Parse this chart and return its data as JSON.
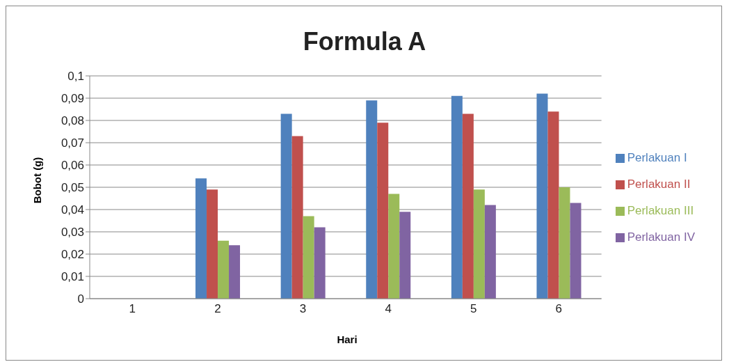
{
  "chart_data": {
    "type": "bar",
    "title": "Formula A",
    "xlabel": "Hari",
    "ylabel": "Bobot (g)",
    "categories": [
      "1",
      "2",
      "3",
      "4",
      "5",
      "6"
    ],
    "series": [
      {
        "name": "Perlakuan I",
        "color": "#4f81bd",
        "values": [
          0,
          0.054,
          0.083,
          0.089,
          0.091,
          0.092
        ]
      },
      {
        "name": "Perlakuan II",
        "color": "#c0504d",
        "values": [
          0,
          0.049,
          0.073,
          0.079,
          0.083,
          0.084
        ]
      },
      {
        "name": "Perlakuan III",
        "color": "#9bbb59",
        "values": [
          0,
          0.026,
          0.037,
          0.047,
          0.049,
          0.05
        ]
      },
      {
        "name": "Perlakuan IV",
        "color": "#8064a2",
        "values": [
          0,
          0.024,
          0.032,
          0.039,
          0.042,
          0.043
        ]
      }
    ],
    "ylim": [
      0,
      0.1
    ],
    "yticks": [
      0,
      {
        "value": 0.01,
        "label": "0,01"
      },
      {
        "value": 0.02,
        "label": "0,02"
      },
      {
        "value": 0.03,
        "label": "0,03"
      },
      {
        "value": 0.04,
        "label": "0,04"
      },
      {
        "value": 0.05,
        "label": "0,05"
      },
      {
        "value": 0.06,
        "label": "0,06"
      },
      {
        "value": 0.07,
        "label": "0,07"
      },
      {
        "value": 0.08,
        "label": "0,08"
      },
      {
        "value": 0.09,
        "label": "0,09"
      },
      {
        "value": 0.1,
        "label": "0,1"
      }
    ],
    "grid": "y",
    "legend": "right"
  }
}
